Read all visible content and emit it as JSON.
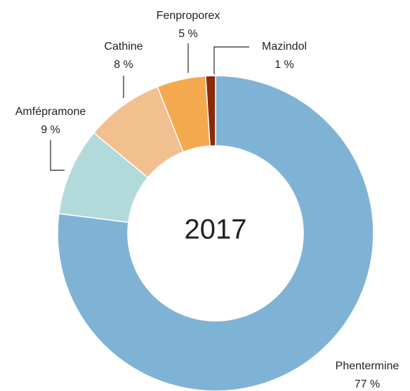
{
  "chart_data": {
    "type": "donut",
    "center_label": "2017",
    "categories": [
      "Phentermine",
      "Amfépramone",
      "Cathine",
      "Fenproporex",
      "Mazindol"
    ],
    "values": [
      77,
      9,
      8,
      5,
      1
    ],
    "value_labels": [
      "77 %",
      "9 %",
      "8 %",
      "5 %",
      "1 %"
    ],
    "colors": [
      "#7fb3d5",
      "#b3dadb",
      "#f2bf8e",
      "#f5a94e",
      "#8b2a0a"
    ]
  }
}
